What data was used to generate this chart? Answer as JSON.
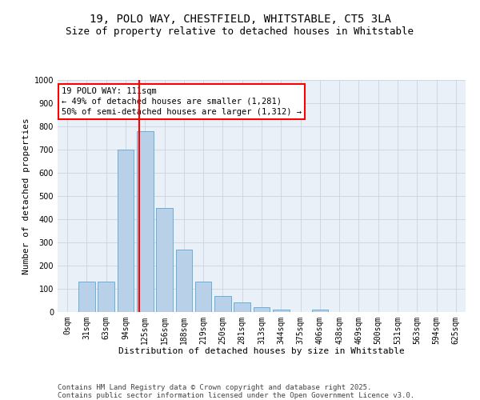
{
  "title_line1": "19, POLO WAY, CHESTFIELD, WHITSTABLE, CT5 3LA",
  "title_line2": "Size of property relative to detached houses in Whitstable",
  "xlabel": "Distribution of detached houses by size in Whitstable",
  "ylabel": "Number of detached properties",
  "bins": [
    "0sqm",
    "31sqm",
    "63sqm",
    "94sqm",
    "125sqm",
    "156sqm",
    "188sqm",
    "219sqm",
    "250sqm",
    "281sqm",
    "313sqm",
    "344sqm",
    "375sqm",
    "406sqm",
    "438sqm",
    "469sqm",
    "500sqm",
    "531sqm",
    "563sqm",
    "594sqm",
    "625sqm"
  ],
  "values": [
    0,
    130,
    130,
    700,
    780,
    450,
    270,
    130,
    70,
    40,
    20,
    10,
    0,
    10,
    0,
    0,
    0,
    0,
    0,
    0,
    0
  ],
  "bar_color": "#b8d0e8",
  "bar_edge_color": "#6aaed6",
  "vline_x": 3.72,
  "vline_color": "red",
  "annotation_text": "19 POLO WAY: 111sqm\n← 49% of detached houses are smaller (1,281)\n50% of semi-detached houses are larger (1,312) →",
  "annotation_box_color": "red",
  "ylim": [
    0,
    1000
  ],
  "yticks": [
    0,
    100,
    200,
    300,
    400,
    500,
    600,
    700,
    800,
    900,
    1000
  ],
  "grid_color": "#c8d4e0",
  "bg_color": "#eaf0f8",
  "footer_line1": "Contains HM Land Registry data © Crown copyright and database right 2025.",
  "footer_line2": "Contains public sector information licensed under the Open Government Licence v3.0.",
  "title_fontsize": 10,
  "subtitle_fontsize": 9,
  "axis_label_fontsize": 8,
  "tick_fontsize": 7,
  "annotation_fontsize": 7.5,
  "footer_fontsize": 6.5
}
